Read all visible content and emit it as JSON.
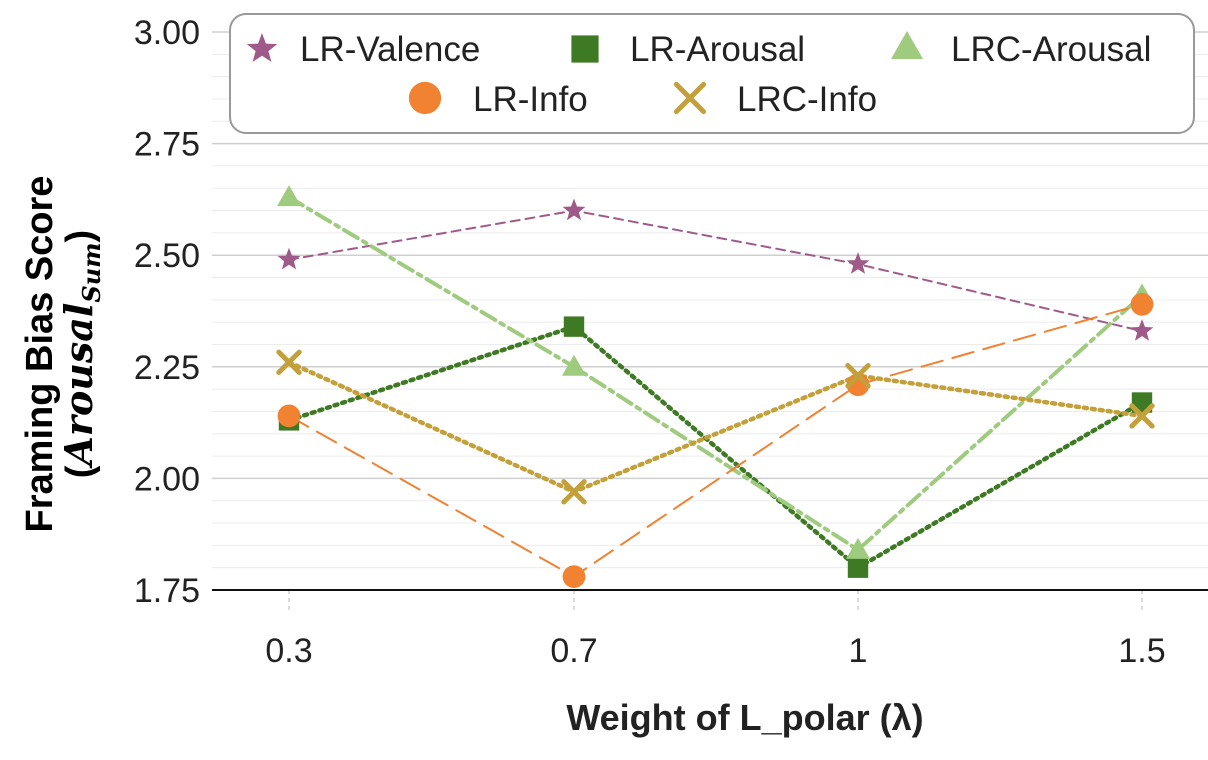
{
  "chart_data": {
    "type": "line",
    "title": "",
    "xlabel": "Weight of L_polar (λ)",
    "ylabel": "Framing Bias Score",
    "ylabel_open": "(",
    "ylabel_sub_main": "Arousal",
    "ylabel_sub_script": "Sum",
    "ylabel_close": ")",
    "categories": [
      "0.3",
      "0.7",
      "1",
      "1.5"
    ],
    "ylim": [
      1.75,
      3.0
    ],
    "yticks": [
      1.75,
      2.0,
      2.25,
      2.5,
      2.75,
      3.0
    ],
    "ytick_labels": [
      "1.75",
      "2.00",
      "2.25",
      "2.50",
      "2.75",
      "3.00"
    ],
    "grid": true,
    "legend_position": "top",
    "series": [
      {
        "name": "LR-Valence",
        "values": [
          2.49,
          2.6,
          2.48,
          2.33
        ],
        "color": "#a05a8a",
        "marker": "star",
        "line": "dashed"
      },
      {
        "name": "LR-Arousal",
        "values": [
          2.13,
          2.34,
          1.8,
          2.17
        ],
        "color": "#3e7a23",
        "marker": "square",
        "line": "dotted"
      },
      {
        "name": "LRC-Arousal",
        "values": [
          2.63,
          2.25,
          1.84,
          2.41
        ],
        "color": "#9fcb7f",
        "marker": "triangle",
        "line": "dashdot"
      },
      {
        "name": "LR-Info",
        "values": [
          2.14,
          1.78,
          2.21,
          2.39
        ],
        "color": "#f08232",
        "marker": "circle",
        "line": "longdash"
      },
      {
        "name": "LRC-Info",
        "values": [
          2.26,
          1.97,
          2.23,
          2.14
        ],
        "color": "#c4a03a",
        "marker": "x",
        "line": "dotted"
      }
    ]
  }
}
